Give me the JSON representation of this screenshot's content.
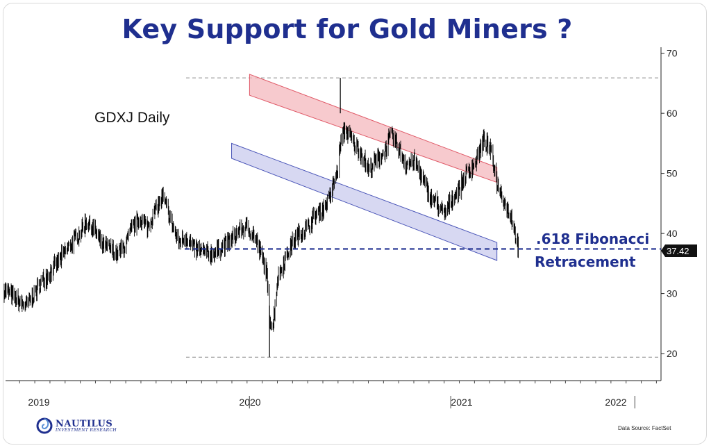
{
  "title": "Key Support for Gold Miners ?",
  "series_label": "GDXJ Daily",
  "annotation": {
    "line1": ".618 Fibonacci",
    "line2": "Retracement",
    "price_tag": "37.42",
    "support_level": 37.42
  },
  "logo": {
    "name": "NAUTILUS",
    "tagline": "INVESTMENT RESEARCH"
  },
  "source": "Data Source: FactSet",
  "colors": {
    "title": "#1f2f8f",
    "upper_channel_fill": "#f4b8be",
    "upper_channel_stroke": "#e05a68",
    "lower_channel_fill": "#c9cbee",
    "lower_channel_stroke": "#4a55b8",
    "price": "#000000",
    "fib_line": "#1f2f8f"
  },
  "chart_data": {
    "type": "line",
    "ylim": [
      15.5,
      71
    ],
    "yticks": [
      20,
      30,
      40,
      50,
      60,
      70
    ],
    "xlabels": [
      "2019",
      "2020",
      "2021",
      "2022"
    ],
    "x_range": [
      "2018-10-01",
      "2022-05-10"
    ],
    "grid": false,
    "reference_lines": [
      65.9,
      19.4
    ],
    "upper_channel": {
      "top_start": [
        "2020-02-05",
        66.5
      ],
      "top_end": [
        "2021-06-15",
        51.0
      ],
      "bottom_start": [
        "2020-02-05",
        63.0
      ],
      "bottom_end": [
        "2021-06-15",
        48.5
      ]
    },
    "lower_channel": {
      "top_start": [
        "2019-12-31",
        55.0
      ],
      "top_end": [
        "2021-06-15",
        38.5
      ],
      "bottom_start": [
        "2019-12-31",
        52.5
      ],
      "bottom_end": [
        "2021-06-15",
        35.5
      ]
    },
    "series": [
      {
        "x": [
          "2018-10-01",
          "2018-10-15",
          "2018-11-01",
          "2018-11-15",
          "2018-12-01",
          "2018-12-15",
          "2019-01-01",
          "2019-01-15",
          "2019-02-01",
          "2019-02-15",
          "2019-03-01",
          "2019-03-15",
          "2019-04-01",
          "2019-04-15",
          "2019-05-01",
          "2019-05-15",
          "2019-06-01",
          "2019-06-15",
          "2019-07-01",
          "2019-07-15",
          "2019-08-01",
          "2019-08-15",
          "2019-09-01",
          "2019-09-15",
          "2019-10-01",
          "2019-10-15",
          "2019-11-01",
          "2019-11-15",
          "2019-12-01",
          "2019-12-15",
          "2020-01-01",
          "2020-01-15",
          "2020-02-01",
          "2020-02-15",
          "2020-03-01",
          "2020-03-10",
          "2020-03-16",
          "2020-03-23",
          "2020-04-01",
          "2020-04-15",
          "2020-05-01",
          "2020-05-15",
          "2020-06-01",
          "2020-06-15",
          "2020-07-01",
          "2020-07-15",
          "2020-08-01",
          "2020-08-05",
          "2020-08-15",
          "2020-09-01",
          "2020-09-15",
          "2020-10-01",
          "2020-10-15",
          "2020-11-01",
          "2020-11-15",
          "2020-12-01",
          "2020-12-15",
          "2021-01-01",
          "2021-01-15",
          "2021-02-01",
          "2021-02-15",
          "2021-03-01",
          "2021-03-15",
          "2021-04-01",
          "2021-04-15",
          "2021-05-01",
          "2021-05-15",
          "2021-05-20",
          "2021-06-01",
          "2021-06-10",
          "2021-06-15",
          "2021-06-25",
          "2021-07-01",
          "2021-07-15",
          "2021-07-28"
        ],
        "y": [
          30.6,
          29.8,
          28.4,
          28.0,
          30.0,
          32.0,
          33.5,
          35.0,
          37.0,
          38.5,
          40.0,
          42.0,
          40.5,
          38.0,
          37.5,
          36.5,
          38.0,
          41.0,
          42.5,
          41.0,
          44.0,
          46.0,
          42.0,
          38.5,
          39.5,
          37.5,
          37.0,
          36.5,
          37.0,
          38.0,
          39.0,
          40.5,
          41.0,
          39.5,
          36.0,
          33.5,
          26.0,
          24.5,
          32.5,
          35.5,
          38.5,
          40.0,
          41.0,
          43.0,
          44.0,
          46.0,
          51.0,
          55.0,
          57.5,
          55.0,
          53.5,
          50.5,
          52.0,
          53.5,
          56.5,
          54.0,
          51.5,
          52.0,
          49.5,
          46.0,
          45.0,
          43.0,
          45.5,
          47.5,
          50.0,
          51.5,
          54.5,
          55.5,
          54.0,
          51.0,
          48.5,
          46.5,
          45.0,
          42.5,
          37.4
        ]
      }
    ]
  }
}
